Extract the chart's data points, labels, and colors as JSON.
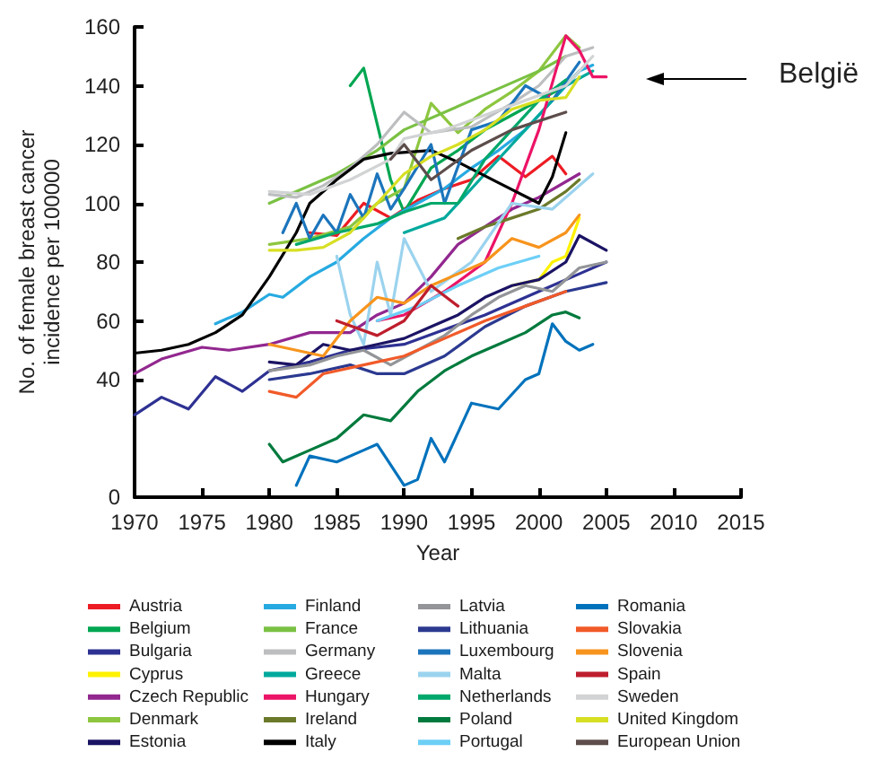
{
  "chart_data": {
    "type": "line",
    "xlabel": "Year",
    "ylabel": "No. of female breast cancer\nincidence per 100000",
    "xlim": [
      1970,
      2015
    ],
    "xticks": [
      1970,
      1975,
      1980,
      1985,
      1990,
      1995,
      2000,
      2005,
      2010,
      2015
    ],
    "ylim": [
      0,
      160
    ],
    "yticks": [
      0,
      40,
      60,
      80,
      100,
      120,
      140,
      160
    ],
    "grid": false,
    "legend": "bottom",
    "marker": "none",
    "line_style": "solid",
    "annotations": [
      "België"
    ],
    "series": [
      {
        "name": "Austria",
        "color": "#ed1c24",
        "x": [
          1983,
          1985,
          1987,
          1989,
          1991,
          1993,
          1995,
          1997,
          1999,
          2001,
          2002
        ],
        "values": [
          90,
          89,
          100,
          95,
          101,
          105,
          108,
          116,
          109,
          116,
          110
        ]
      },
      {
        "name": "Belgium",
        "color": "#00a651",
        "x": [
          1986,
          1987,
          1989,
          1990,
          1992,
          1994,
          1996,
          1998,
          2000,
          2002,
          2003
        ],
        "values": [
          140,
          146,
          108,
          97,
          112,
          118,
          125,
          130,
          135,
          140,
          145
        ]
      },
      {
        "name": "Bulgaria",
        "color": "#2e3192",
        "x": [
          1970,
          1972,
          1974,
          1976,
          1978,
          1980,
          1983,
          1986,
          1990,
          1993,
          1996,
          2000,
          2003,
          2005
        ],
        "values": [
          28,
          34,
          30,
          41,
          36,
          43,
          46,
          50,
          52,
          57,
          62,
          70,
          76,
          80
        ]
      },
      {
        "name": "Cyprus",
        "color": "#fff200",
        "x": [
          1998,
          2000,
          2001,
          2002,
          2003
        ],
        "values": [
          72,
          74,
          80,
          82,
          95
        ]
      },
      {
        "name": "Czech Republic",
        "color": "#92278f",
        "x": [
          1970,
          1972,
          1975,
          1977,
          1980,
          1983,
          1986,
          1988,
          1990,
          1992,
          1994,
          1996,
          1998,
          2000,
          2003
        ],
        "values": [
          42,
          47,
          51,
          50,
          52,
          56,
          56,
          62,
          66,
          75,
          86,
          92,
          98,
          102,
          110
        ]
      },
      {
        "name": "Denmark",
        "color": "#8dc63f",
        "x": [
          1980,
          1983,
          1986,
          1988,
          1990,
          1992,
          1994,
          1996,
          1998,
          2000,
          2002,
          2003
        ],
        "values": [
          86,
          88,
          92,
          100,
          105,
          134,
          124,
          132,
          138,
          145,
          157,
          153
        ]
      },
      {
        "name": "Estonia",
        "color": "#1b1464",
        "x": [
          1980,
          1982,
          1984,
          1986,
          1988,
          1990,
          1992,
          1994,
          1996,
          1998,
          2000,
          2002,
          2003,
          2005
        ],
        "values": [
          46,
          45,
          52,
          50,
          52,
          54,
          58,
          62,
          68,
          72,
          74,
          80,
          89,
          84
        ]
      },
      {
        "name": "Finland",
        "color": "#27aae1",
        "x": [
          1976,
          1978,
          1980,
          1981,
          1983,
          1985,
          1987,
          1989,
          1991,
          1993,
          1995,
          1997,
          1999,
          2001,
          2003,
          2004
        ],
        "values": [
          59,
          63,
          69,
          68,
          75,
          80,
          88,
          95,
          100,
          105,
          112,
          118,
          125,
          135,
          145,
          147
        ]
      },
      {
        "name": "France",
        "color": "#7ac143",
        "x": [
          1980,
          1985,
          1988,
          1990,
          1995,
          2000,
          2002
        ],
        "values": [
          100,
          110,
          118,
          125,
          135,
          145,
          150
        ]
      },
      {
        "name": "Germany",
        "color": "#bcbec0",
        "x": [
          1980,
          1982,
          1984,
          1986,
          1988,
          1990,
          1992,
          1995,
          1998,
          2000,
          2002,
          2004
        ],
        "values": [
          103,
          102,
          106,
          112,
          120,
          131,
          124,
          126,
          134,
          140,
          150,
          153
        ]
      },
      {
        "name": "Greece",
        "color": "#00a99d",
        "x": [
          1990,
          1993,
          1996,
          1999,
          2002,
          2004
        ],
        "values": [
          90,
          95,
          110,
          125,
          140,
          145
        ]
      },
      {
        "name": "Hungary",
        "color": "#ec1466",
        "x": [
          1988,
          1990,
          1993,
          1996,
          1998,
          2000,
          2002,
          2003,
          2004,
          2005
        ],
        "values": [
          60,
          62,
          70,
          80,
          100,
          125,
          157,
          152,
          143,
          143
        ]
      },
      {
        "name": "Ireland",
        "color": "#6b7a2a",
        "x": [
          1994,
          1996,
          1998,
          2000,
          2002,
          2003
        ],
        "values": [
          88,
          92,
          95,
          98,
          104,
          108
        ]
      },
      {
        "name": "Italy",
        "color": "#000000",
        "x": [
          1970,
          1972,
          1974,
          1976,
          1978,
          1980,
          1982,
          1983,
          1985,
          1987,
          1989,
          1992,
          1994,
          1997,
          2000,
          2001,
          2002
        ],
        "values": [
          49,
          50,
          52,
          56,
          62,
          75,
          90,
          100,
          108,
          115,
          117,
          118,
          114,
          107,
          100,
          109,
          124
        ]
      },
      {
        "name": "Latvia",
        "color": "#939598",
        "x": [
          1980,
          1983,
          1985,
          1987,
          1989,
          1991,
          1993,
          1995,
          1997,
          1999,
          2001,
          2003,
          2005
        ],
        "values": [
          43,
          45,
          48,
          50,
          45,
          50,
          55,
          62,
          68,
          72,
          70,
          78,
          80
        ]
      },
      {
        "name": "Lithuania",
        "color": "#2b3990",
        "x": [
          1980,
          1983,
          1986,
          1988,
          1990,
          1993,
          1996,
          1999,
          2002,
          2005
        ],
        "values": [
          40,
          42,
          45,
          42,
          42,
          48,
          58,
          65,
          70,
          73
        ]
      },
      {
        "name": "Luxembourg",
        "color": "#1c75bc",
        "x": [
          1981,
          1982,
          1983,
          1984,
          1985,
          1986,
          1987,
          1988,
          1989,
          1990,
          1992,
          1993,
          1995,
          1997,
          1999,
          2001,
          2003
        ],
        "values": [
          90,
          100,
          88,
          96,
          90,
          103,
          95,
          110,
          98,
          105,
          120,
          100,
          125,
          128,
          140,
          135,
          148
        ]
      },
      {
        "name": "Malta",
        "color": "#9bd3ee",
        "x": [
          1985,
          1986,
          1987,
          1988,
          1989,
          1990,
          1992,
          1995,
          1998,
          2001,
          2004
        ],
        "values": [
          82,
          62,
          52,
          80,
          62,
          88,
          70,
          80,
          100,
          98,
          110
        ]
      },
      {
        "name": "Netherlands",
        "color": "#00a86b",
        "x": [
          1982,
          1985,
          1988,
          1990,
          1992,
          1994,
          1996,
          1998,
          2000,
          2002
        ],
        "values": [
          86,
          90,
          93,
          97,
          100,
          100,
          115,
          125,
          135,
          142
        ]
      },
      {
        "name": "Poland",
        "color": "#007a3d",
        "x": [
          1980,
          1981,
          1983,
          1985,
          1987,
          1989,
          1991,
          1993,
          1995,
          1997,
          1999,
          2001,
          2002,
          2003
        ],
        "values": [
          18,
          12,
          16,
          20,
          28,
          26,
          36,
          43,
          48,
          52,
          56,
          62,
          63,
          61
        ]
      },
      {
        "name": "Portugal",
        "color": "#6dcff6",
        "x": [
          1988,
          1991,
          1994,
          1997,
          2000
        ],
        "values": [
          60,
          65,
          72,
          78,
          82
        ]
      },
      {
        "name": "Romania",
        "color": "#0072bc",
        "x": [
          1982,
          1983,
          1985,
          1987,
          1988,
          1990,
          1991,
          1992,
          1993,
          1995,
          1997,
          1999,
          2000,
          2001,
          2002,
          2003,
          2004
        ],
        "values": [
          4,
          14,
          12,
          16,
          18,
          4,
          6,
          20,
          12,
          32,
          30,
          40,
          42,
          59,
          53,
          50,
          52
        ]
      },
      {
        "name": "Slovakia",
        "color": "#f15a29",
        "x": [
          1980,
          1982,
          1984,
          1987,
          1990,
          1993,
          1996,
          1999,
          2002
        ],
        "values": [
          36,
          34,
          42,
          45,
          48,
          54,
          60,
          65,
          70
        ]
      },
      {
        "name": "Slovenia",
        "color": "#f7941d",
        "x": [
          1980,
          1982,
          1984,
          1986,
          1988,
          1990,
          1992,
          1994,
          1996,
          1998,
          2000,
          2002,
          2003
        ],
        "values": [
          52,
          50,
          48,
          60,
          68,
          66,
          72,
          76,
          80,
          88,
          85,
          90,
          96
        ]
      },
      {
        "name": "Spain",
        "color": "#be1e2d",
        "x": [
          1985,
          1988,
          1990,
          1992,
          1994
        ],
        "values": [
          60,
          55,
          60,
          72,
          65
        ]
      },
      {
        "name": "Sweden",
        "color": "#d1d3d4",
        "x": [
          1980,
          1983,
          1986,
          1989,
          1990,
          1993,
          1996,
          1999,
          2002,
          2004
        ],
        "values": [
          104,
          103,
          108,
          115,
          122,
          125,
          130,
          135,
          140,
          150
        ]
      },
      {
        "name": "United Kingdom",
        "color": "#d7df23",
        "x": [
          1980,
          1982,
          1984,
          1986,
          1988,
          1990,
          1992,
          1994,
          1996,
          1998,
          2000,
          2002,
          2003
        ],
        "values": [
          84,
          84,
          85,
          90,
          100,
          110,
          116,
          120,
          125,
          132,
          135,
          136,
          143
        ]
      },
      {
        "name": "European Union",
        "color": "#5d4d4b",
        "x": [
          1989,
          1990,
          1992,
          1995,
          1998,
          2002
        ],
        "values": [
          115,
          120,
          108,
          118,
          125,
          131
        ]
      }
    ]
  }
}
